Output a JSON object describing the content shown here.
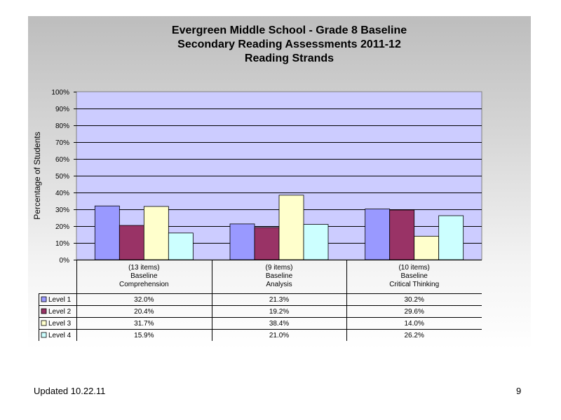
{
  "chart_data": {
    "type": "bar",
    "title_lines": [
      "Evergreen Middle School - Grade 8 Baseline",
      "Secondary Reading Assessments 2011-12",
      "Reading Strands"
    ],
    "ylabel": "Percentage of Students",
    "ylim": [
      0,
      100
    ],
    "yticks": [
      0,
      10,
      20,
      30,
      40,
      50,
      60,
      70,
      80,
      90,
      100
    ],
    "ytick_labels": [
      "0%",
      "10%",
      "20%",
      "30%",
      "40%",
      "50%",
      "60%",
      "70%",
      "80%",
      "90%",
      "100%"
    ],
    "categories": [
      [
        "(13 items)",
        "Baseline",
        "Comprehension"
      ],
      [
        "(9 items)",
        "Baseline",
        "Analysis"
      ],
      [
        "(10 items)",
        "Baseline",
        "Critical Thinking"
      ]
    ],
    "series": [
      {
        "name": "Level 1",
        "color": "#9999ff",
        "values": [
          32.0,
          21.3,
          30.2
        ],
        "labels": [
          "32.0%",
          "21.3%",
          "30.2%"
        ]
      },
      {
        "name": "Level 2",
        "color": "#993366",
        "values": [
          20.4,
          19.2,
          29.6
        ],
        "labels": [
          "20.4%",
          "19.2%",
          "29.6%"
        ]
      },
      {
        "name": "Level 3",
        "color": "#ffffcc",
        "values": [
          31.7,
          38.4,
          14.0
        ],
        "labels": [
          "31.7%",
          "38.4%",
          "14.0%"
        ]
      },
      {
        "name": "Level 4",
        "color": "#ccffff",
        "values": [
          15.9,
          21.0,
          26.2
        ],
        "labels": [
          "15.9%",
          "21.0%",
          "26.2%"
        ]
      }
    ],
    "plot_background": "#ccccff",
    "legend": "data-table-left",
    "gridlines_at": [
      10,
      20,
      30,
      40,
      50,
      60,
      70,
      80,
      90
    ]
  },
  "footer": {
    "updated": "Updated  10.22.11",
    "page_number": "9"
  }
}
